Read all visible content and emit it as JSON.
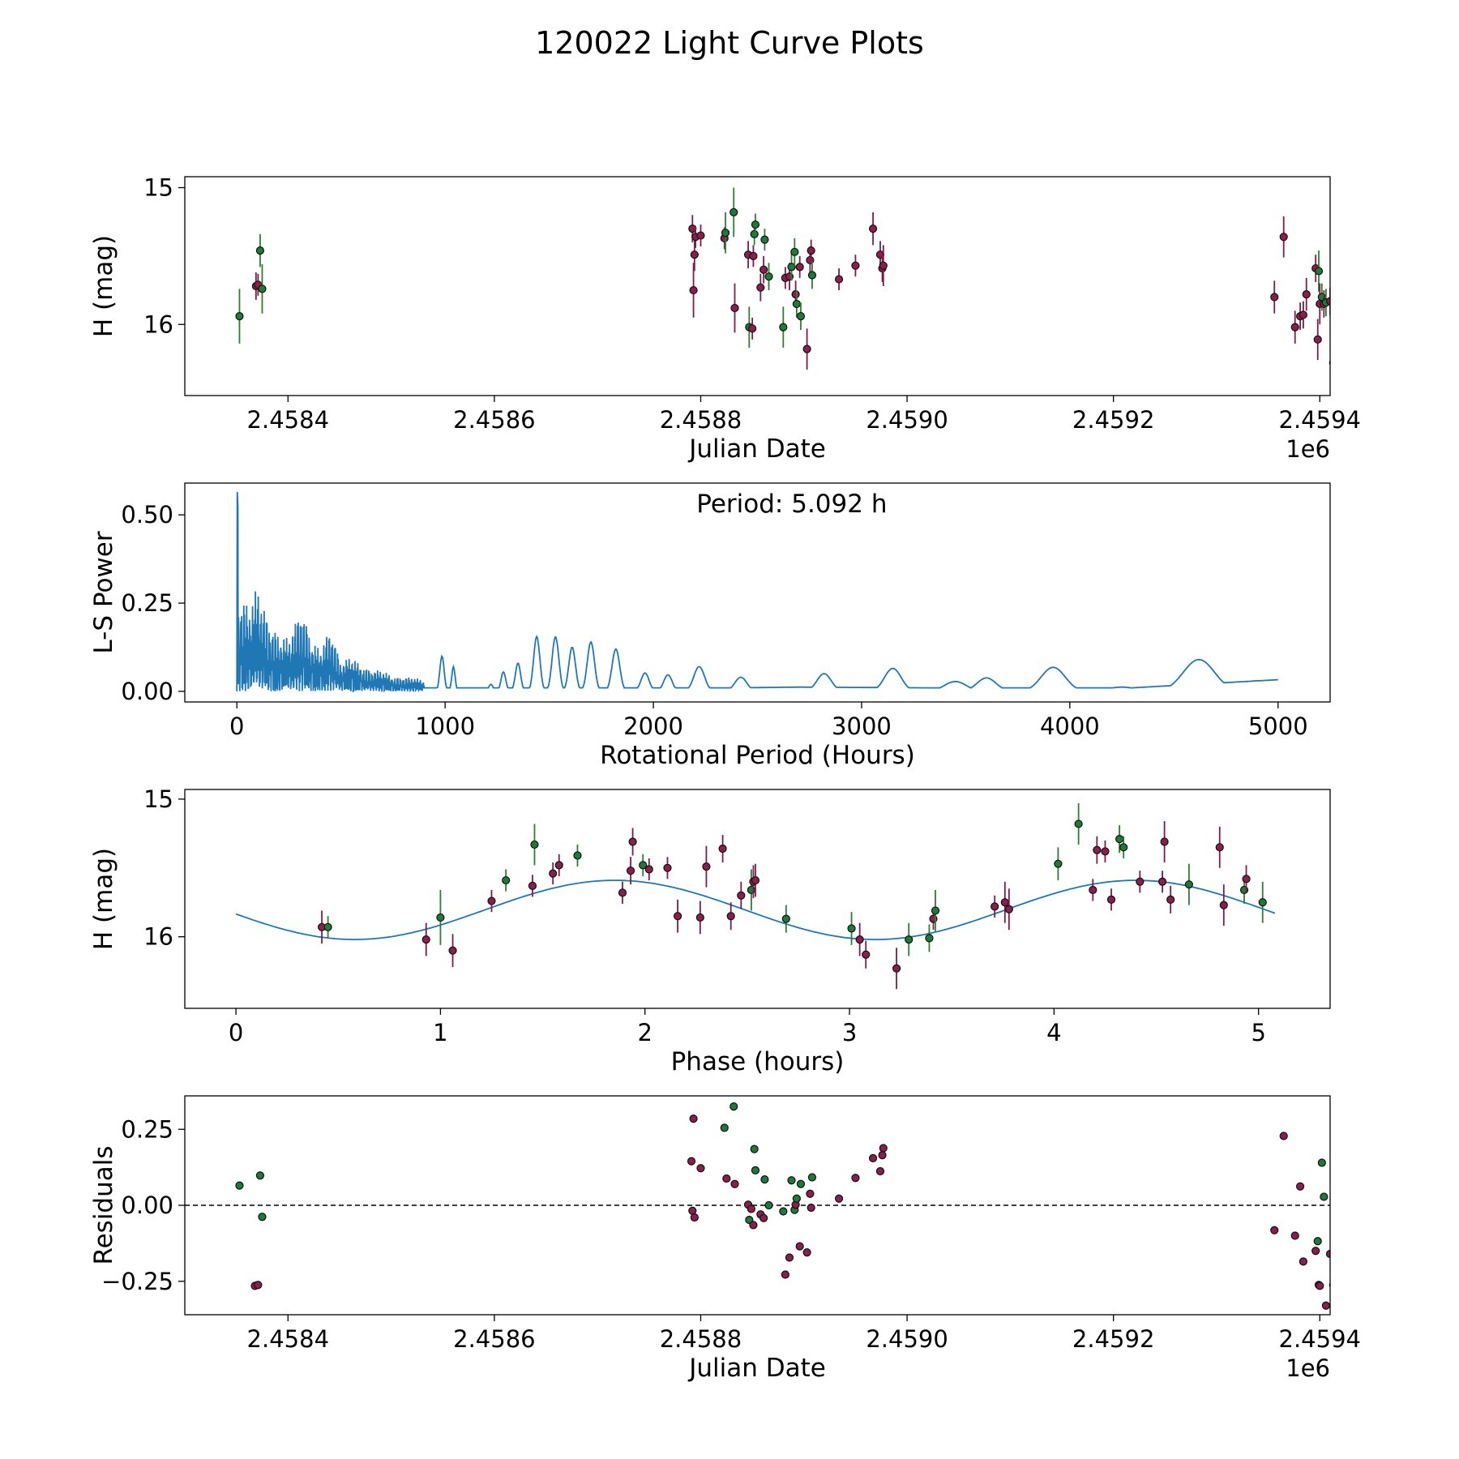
{
  "figure_title": "120022 Light Curve Plots",
  "colors": {
    "green": "#1f7a3a",
    "purple": "#8b1e4e",
    "green_bar": "#2e7d32",
    "purple_bar": "#7a1c4c",
    "line": "#1f77b4"
  },
  "chart_data": [
    {
      "type": "scatter",
      "id": "lightcurve",
      "xlabel": "Julian Date",
      "ylabel": "H (mag)",
      "offset_label": "1e6",
      "xlim": [
        2.4583,
        2.45941
      ],
      "ylim": [
        14.92,
        16.52
      ],
      "y_inverted": true,
      "xticks": [
        "2.4584",
        "2.4586",
        "2.4588",
        "2.4590",
        "2.4592",
        "2.4594"
      ],
      "xtick_values": [
        2.4584,
        2.4586,
        2.4588,
        2.459,
        2.4592,
        2.4594
      ],
      "yticks": [
        "15",
        "16"
      ],
      "ytick_values": [
        15,
        16
      ],
      "points": [
        [
          2.458353,
          15.94,
          0.2,
          "g"
        ],
        [
          2.458369,
          15.72,
          0.1,
          "p"
        ],
        [
          2.458371,
          15.71,
          0.08,
          "p"
        ],
        [
          2.458373,
          15.46,
          0.12,
          "g"
        ],
        [
          2.458375,
          15.74,
          0.18,
          "g"
        ],
        [
          2.458792,
          15.3,
          0.1,
          "p"
        ],
        [
          2.458793,
          15.75,
          0.2,
          "p"
        ],
        [
          2.458794,
          15.49,
          0.12,
          "p"
        ],
        [
          2.458795,
          15.36,
          0.08,
          "p"
        ],
        [
          2.4588,
          15.35,
          0.08,
          "p"
        ],
        [
          2.458823,
          15.37,
          0.08,
          "p"
        ],
        [
          2.458824,
          15.33,
          0.15,
          "g"
        ],
        [
          2.458832,
          15.18,
          0.18,
          "g"
        ],
        [
          2.458833,
          15.88,
          0.18,
          "p"
        ],
        [
          2.458846,
          15.49,
          0.1,
          "p"
        ],
        [
          2.458847,
          16.02,
          0.15,
          "g"
        ],
        [
          2.45885,
          16.03,
          0.08,
          "p"
        ],
        [
          2.458851,
          15.5,
          0.08,
          "p"
        ],
        [
          2.458852,
          15.34,
          0.08,
          "g"
        ],
        [
          2.458853,
          15.27,
          0.08,
          "g"
        ],
        [
          2.458858,
          15.73,
          0.1,
          "p"
        ],
        [
          2.458861,
          15.6,
          0.1,
          "p"
        ],
        [
          2.458862,
          15.38,
          0.08,
          "g"
        ],
        [
          2.458866,
          15.65,
          0.1,
          "g"
        ],
        [
          2.45888,
          16.02,
          0.15,
          "g"
        ],
        [
          2.458882,
          15.66,
          0.08,
          "p"
        ],
        [
          2.458886,
          15.65,
          0.1,
          "p"
        ],
        [
          2.458888,
          15.58,
          0.1,
          "g"
        ],
        [
          2.458891,
          15.47,
          0.1,
          "g"
        ],
        [
          2.458892,
          15.78,
          0.1,
          "p"
        ],
        [
          2.458893,
          15.85,
          0.1,
          "g"
        ],
        [
          2.458896,
          15.58,
          0.08,
          "p"
        ],
        [
          2.458897,
          15.94,
          0.1,
          "g"
        ],
        [
          2.458903,
          16.18,
          0.15,
          "p"
        ],
        [
          2.458906,
          15.53,
          0.1,
          "p"
        ],
        [
          2.458907,
          15.46,
          0.08,
          "p"
        ],
        [
          2.458908,
          15.64,
          0.1,
          "g"
        ],
        [
          2.458934,
          15.67,
          0.08,
          "p"
        ],
        [
          2.45895,
          15.57,
          0.08,
          "p"
        ],
        [
          2.458967,
          15.3,
          0.12,
          "p"
        ],
        [
          2.458974,
          15.49,
          0.1,
          "p"
        ],
        [
          2.458976,
          15.59,
          0.1,
          "p"
        ],
        [
          2.458977,
          15.57,
          0.15,
          "p"
        ],
        [
          2.459356,
          15.8,
          0.12,
          "p"
        ],
        [
          2.459365,
          15.36,
          0.15,
          "p"
        ],
        [
          2.459376,
          16.02,
          0.12,
          "p"
        ],
        [
          2.459381,
          15.94,
          0.1,
          "p"
        ],
        [
          2.459384,
          15.93,
          0.1,
          "p"
        ],
        [
          2.459387,
          15.78,
          0.12,
          "p"
        ],
        [
          2.459396,
          15.59,
          0.1,
          "p"
        ],
        [
          2.459398,
          16.11,
          0.15,
          "p"
        ],
        [
          2.459399,
          15.61,
          0.15,
          "g"
        ],
        [
          2.4594,
          15.85,
          0.15,
          "p"
        ],
        [
          2.459402,
          15.8,
          0.1,
          "g"
        ],
        [
          2.459404,
          15.85,
          0.1,
          "p"
        ],
        [
          2.459406,
          15.84,
          0.1,
          "g"
        ],
        [
          2.45941,
          15.83,
          0.1,
          "p"
        ],
        [
          2.459413,
          16.28,
          0.18,
          "p"
        ]
      ]
    },
    {
      "type": "line",
      "id": "periodogram",
      "xlabel": "Rotational Period (Hours)",
      "ylabel": "L-S Power",
      "annotation": "Period: 5.092 h",
      "xlim": [
        -250,
        5250
      ],
      "ylim": [
        -0.03,
        0.59
      ],
      "xticks": [
        "0",
        "1000",
        "2000",
        "3000",
        "4000",
        "5000"
      ],
      "xtick_values": [
        0,
        1000,
        2000,
        3000,
        4000,
        5000
      ],
      "yticks": [
        "0.00",
        "0.25",
        "0.50"
      ],
      "ytick_values": [
        0,
        0.25,
        0.5
      ],
      "peak": [
        5.092,
        0.565
      ],
      "hf_envelope": [
        [
          0,
          0.28
        ],
        [
          60,
          0.24
        ],
        [
          100,
          0.3
        ],
        [
          150,
          0.2
        ],
        [
          200,
          0.16
        ],
        [
          250,
          0.15
        ],
        [
          310,
          0.24
        ],
        [
          360,
          0.14
        ],
        [
          400,
          0.12
        ],
        [
          450,
          0.18
        ],
        [
          500,
          0.08
        ],
        [
          550,
          0.1
        ],
        [
          600,
          0.07
        ],
        [
          650,
          0.06
        ],
        [
          700,
          0.06
        ],
        [
          750,
          0.04
        ],
        [
          800,
          0.04
        ],
        [
          850,
          0.04
        ],
        [
          900,
          0.03
        ]
      ],
      "bumps": [
        [
          985,
          0.1,
          18
        ],
        [
          1040,
          0.07,
          14
        ],
        [
          1220,
          0.02,
          18
        ],
        [
          1280,
          0.055,
          20
        ],
        [
          1350,
          0.08,
          22
        ],
        [
          1440,
          0.155,
          26
        ],
        [
          1530,
          0.155,
          28
        ],
        [
          1610,
          0.125,
          28
        ],
        [
          1700,
          0.14,
          30
        ],
        [
          1820,
          0.12,
          32
        ],
        [
          1960,
          0.052,
          34
        ],
        [
          2070,
          0.047,
          35
        ],
        [
          2220,
          0.07,
          45
        ],
        [
          2420,
          0.04,
          50
        ],
        [
          2600,
          0.01,
          40
        ],
        [
          2820,
          0.05,
          60
        ],
        [
          3000,
          0.01,
          50
        ],
        [
          3150,
          0.065,
          70
        ],
        [
          3450,
          0.028,
          90
        ],
        [
          3600,
          0.038,
          80
        ],
        [
          3920,
          0.068,
          100
        ],
        [
          4250,
          0.012,
          120
        ],
        [
          4620,
          0.09,
          130
        ],
        [
          4900,
          0.03,
          150
        ]
      ],
      "baseline": [
        [
          2400,
          0.01
        ],
        [
          2700,
          0.012
        ],
        [
          3300,
          0.01
        ],
        [
          3700,
          0.01
        ],
        [
          4300,
          0.01
        ],
        [
          5000,
          0.033
        ]
      ]
    },
    {
      "type": "scatter",
      "id": "phased",
      "xlabel": "Phase (hours)",
      "ylabel": "H (mag)",
      "xlim": [
        -0.25,
        5.35
      ],
      "ylim": [
        14.93,
        16.52
      ],
      "y_inverted": true,
      "xticks": [
        "0",
        "1",
        "2",
        "3",
        "4",
        "5"
      ],
      "xtick_values": [
        0,
        1,
        2,
        3,
        4,
        5
      ],
      "yticks": [
        "15",
        "16"
      ],
      "ytick_values": [
        15,
        16
      ],
      "fit": {
        "mean": 15.805,
        "amplitude": 0.215,
        "period": 2.546,
        "peak_phase": 0.58
      },
      "points": [
        [
          0.42,
          15.93,
          0.12,
          "p"
        ],
        [
          0.45,
          15.93,
          0.08,
          "g"
        ],
        [
          0.93,
          16.02,
          0.12,
          "p"
        ],
        [
          1.0,
          15.86,
          0.2,
          "g"
        ],
        [
          1.06,
          16.1,
          0.12,
          "p"
        ],
        [
          1.25,
          15.74,
          0.08,
          "p"
        ],
        [
          1.32,
          15.59,
          0.08,
          "g"
        ],
        [
          1.45,
          15.63,
          0.08,
          "p"
        ],
        [
          1.46,
          15.33,
          0.15,
          "g"
        ],
        [
          1.55,
          15.54,
          0.08,
          "p"
        ],
        [
          1.58,
          15.48,
          0.08,
          "p"
        ],
        [
          1.67,
          15.41,
          0.08,
          "g"
        ],
        [
          1.89,
          15.68,
          0.08,
          "p"
        ],
        [
          1.93,
          15.52,
          0.1,
          "p"
        ],
        [
          1.94,
          15.31,
          0.1,
          "p"
        ],
        [
          1.99,
          15.48,
          0.08,
          "g"
        ],
        [
          2.02,
          15.51,
          0.08,
          "p"
        ],
        [
          2.11,
          15.5,
          0.08,
          "p"
        ],
        [
          2.16,
          15.85,
          0.12,
          "p"
        ],
        [
          2.27,
          15.86,
          0.12,
          "p"
        ],
        [
          2.3,
          15.49,
          0.15,
          "p"
        ],
        [
          2.38,
          15.36,
          0.1,
          "p"
        ],
        [
          2.42,
          15.85,
          0.1,
          "p"
        ],
        [
          2.47,
          15.7,
          0.1,
          "p"
        ],
        [
          2.52,
          15.66,
          0.15,
          "g"
        ],
        [
          2.53,
          15.6,
          0.12,
          "p"
        ],
        [
          2.54,
          15.59,
          0.12,
          "p"
        ],
        [
          2.69,
          15.87,
          0.1,
          "g"
        ],
        [
          3.01,
          15.94,
          0.12,
          "g"
        ],
        [
          3.05,
          16.02,
          0.12,
          "p"
        ],
        [
          3.08,
          16.13,
          0.1,
          "p"
        ],
        [
          3.23,
          16.23,
          0.15,
          "p"
        ],
        [
          3.29,
          16.02,
          0.12,
          "g"
        ],
        [
          3.39,
          16.01,
          0.1,
          "g"
        ],
        [
          3.41,
          15.87,
          0.08,
          "p"
        ],
        [
          3.42,
          15.81,
          0.15,
          "g"
        ],
        [
          3.71,
          15.78,
          0.08,
          "p"
        ],
        [
          3.76,
          15.75,
          0.15,
          "p"
        ],
        [
          3.78,
          15.8,
          0.15,
          "p"
        ],
        [
          4.02,
          15.47,
          0.12,
          "g"
        ],
        [
          4.12,
          15.18,
          0.15,
          "g"
        ],
        [
          4.19,
          15.66,
          0.08,
          "p"
        ],
        [
          4.21,
          15.37,
          0.1,
          "p"
        ],
        [
          4.25,
          15.38,
          0.08,
          "p"
        ],
        [
          4.28,
          15.73,
          0.08,
          "p"
        ],
        [
          4.32,
          15.29,
          0.1,
          "g"
        ],
        [
          4.34,
          15.35,
          0.08,
          "g"
        ],
        [
          4.42,
          15.6,
          0.08,
          "p"
        ],
        [
          4.53,
          15.6,
          0.08,
          "p"
        ],
        [
          4.54,
          15.31,
          0.15,
          "p"
        ],
        [
          4.57,
          15.73,
          0.1,
          "p"
        ],
        [
          4.66,
          15.62,
          0.15,
          "g"
        ],
        [
          4.81,
          15.35,
          0.15,
          "p"
        ],
        [
          4.83,
          15.77,
          0.15,
          "p"
        ],
        [
          4.93,
          15.66,
          0.1,
          "g"
        ],
        [
          4.94,
          15.58,
          0.1,
          "p"
        ],
        [
          5.02,
          15.75,
          0.15,
          "g"
        ]
      ]
    },
    {
      "type": "scatter",
      "id": "residuals",
      "xlabel": "Julian Date",
      "ylabel": "Residuals",
      "offset_label": "1e6",
      "xlim": [
        2.4583,
        2.45941
      ],
      "ylim": [
        -0.36,
        0.36
      ],
      "xticks": [
        "2.4584",
        "2.4586",
        "2.4588",
        "2.4590",
        "2.4592",
        "2.4594"
      ],
      "xtick_values": [
        2.4584,
        2.4586,
        2.4588,
        2.459,
        2.4592,
        2.4594
      ],
      "yticks": [
        "0.25",
        "0.00",
        "−0.25"
      ],
      "ytick_values": [
        0.25,
        0,
        -0.25
      ],
      "zero_line": true,
      "points": [
        [
          2.458353,
          0.065,
          "g"
        ],
        [
          2.458368,
          -0.265,
          "p"
        ],
        [
          2.458371,
          -0.262,
          "p"
        ],
        [
          2.458373,
          0.098,
          "g"
        ],
        [
          2.458375,
          -0.038,
          "g"
        ],
        [
          2.458791,
          0.145,
          "p"
        ],
        [
          2.458792,
          -0.018,
          "p"
        ],
        [
          2.458793,
          0.285,
          "p"
        ],
        [
          2.458794,
          -0.04,
          "p"
        ],
        [
          2.4588,
          0.122,
          "p"
        ],
        [
          2.458823,
          0.255,
          "g"
        ],
        [
          2.458825,
          0.088,
          "p"
        ],
        [
          2.458832,
          0.325,
          "g"
        ],
        [
          2.458833,
          0.07,
          "p"
        ],
        [
          2.458846,
          0.002,
          "p"
        ],
        [
          2.458847,
          -0.048,
          "g"
        ],
        [
          2.458849,
          -0.012,
          "p"
        ],
        [
          2.458851,
          -0.065,
          "p"
        ],
        [
          2.458852,
          0.185,
          "g"
        ],
        [
          2.458853,
          0.115,
          "g"
        ],
        [
          2.458858,
          -0.03,
          "p"
        ],
        [
          2.458861,
          -0.042,
          "p"
        ],
        [
          2.458862,
          0.085,
          "g"
        ],
        [
          2.458866,
          0.0,
          "g"
        ],
        [
          2.45888,
          -0.02,
          "g"
        ],
        [
          2.458882,
          -0.228,
          "p"
        ],
        [
          2.458886,
          -0.172,
          "p"
        ],
        [
          2.458888,
          0.082,
          "g"
        ],
        [
          2.458891,
          -0.015,
          "g"
        ],
        [
          2.458892,
          0.002,
          "p"
        ],
        [
          2.458893,
          0.022,
          "g"
        ],
        [
          2.458896,
          -0.135,
          "p"
        ],
        [
          2.458897,
          0.07,
          "g"
        ],
        [
          2.458903,
          -0.155,
          "p"
        ],
        [
          2.458906,
          0.038,
          "p"
        ],
        [
          2.458907,
          -0.008,
          "p"
        ],
        [
          2.458908,
          0.092,
          "g"
        ],
        [
          2.458934,
          0.022,
          "p"
        ],
        [
          2.45895,
          0.09,
          "p"
        ],
        [
          2.458967,
          0.155,
          "p"
        ],
        [
          2.458974,
          0.112,
          "p"
        ],
        [
          2.458976,
          0.165,
          "p"
        ],
        [
          2.458977,
          0.188,
          "p"
        ],
        [
          2.459356,
          -0.082,
          "p"
        ],
        [
          2.459365,
          0.228,
          "p"
        ],
        [
          2.459376,
          -0.1,
          "p"
        ],
        [
          2.459381,
          0.062,
          "p"
        ],
        [
          2.459384,
          -0.185,
          "p"
        ],
        [
          2.459396,
          -0.15,
          "p"
        ],
        [
          2.459398,
          -0.118,
          "g"
        ],
        [
          2.459399,
          -0.262,
          "p"
        ],
        [
          2.4594,
          -0.265,
          "p"
        ],
        [
          2.459402,
          0.14,
          "g"
        ],
        [
          2.459404,
          0.028,
          "g"
        ],
        [
          2.459406,
          -0.33,
          "p"
        ],
        [
          2.45941,
          -0.16,
          "p"
        ],
        [
          2.459413,
          -0.262,
          "p"
        ]
      ]
    }
  ]
}
